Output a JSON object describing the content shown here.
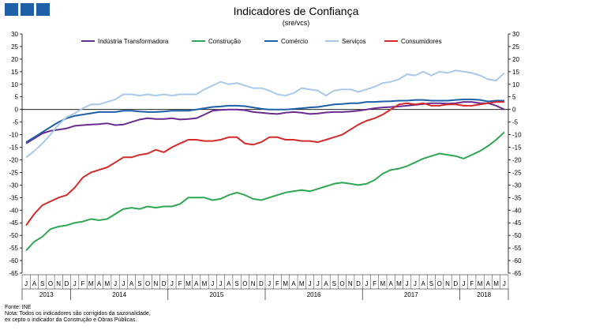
{
  "header": {
    "title": "Indicadores de Confiança",
    "subtitle": "(sre/vcs)"
  },
  "footer": {
    "source": "Fonte: INE",
    "note_line1": "Nota: Todos os indicadores são corrigidos da sazonalidade,",
    "note_line2": "ex cepto o indicador da Construção e Obras Públicas."
  },
  "chart_data": {
    "type": "line",
    "title": "Indicadores de Confiança",
    "subtitle": "(sre/vcs)",
    "xlabel": "",
    "ylabel": "",
    "ylim": [
      -65,
      30
    ],
    "yticks": [
      30,
      25,
      20,
      15,
      10,
      5,
      0,
      -5,
      -10,
      -15,
      -20,
      -25,
      -30,
      -35,
      -40,
      -45,
      -50,
      -55,
      -60,
      -65
    ],
    "grid": false,
    "legend_position": "top",
    "month_labels": [
      "J",
      "A",
      "S",
      "O",
      "N",
      "D",
      "J",
      "F",
      "M",
      "A",
      "M",
      "J",
      "J",
      "A",
      "S",
      "O",
      "N",
      "D",
      "J",
      "F",
      "M",
      "A",
      "M",
      "J",
      "J",
      "A",
      "S",
      "O",
      "N",
      "D",
      "J",
      "F",
      "M",
      "A",
      "M",
      "J",
      "J",
      "A",
      "S",
      "O",
      "N",
      "D",
      "J",
      "F",
      "M",
      "A",
      "M",
      "J",
      "J",
      "A",
      "S",
      "O",
      "N",
      "D",
      "J",
      "F",
      "M",
      "A",
      "M",
      "J"
    ],
    "year_labels": [
      {
        "label": "2013",
        "start": 0,
        "end": 5
      },
      {
        "label": "2014",
        "start": 6,
        "end": 17
      },
      {
        "label": "2015",
        "start": 18,
        "end": 29
      },
      {
        "label": "2016",
        "start": 30,
        "end": 41
      },
      {
        "label": "2017",
        "start": 42,
        "end": 53
      },
      {
        "label": "2018",
        "start": 54,
        "end": 59
      }
    ],
    "series": [
      {
        "name": "Indústria Transformadora",
        "color": "#6b2c8f",
        "values": [
          -13.5,
          -11.5,
          -9.5,
          -8.5,
          -8,
          -7.5,
          -6.5,
          -6.2,
          -6,
          -5.8,
          -5.5,
          -6.2,
          -6,
          -5,
          -4,
          -3.5,
          -3.8,
          -3.8,
          -3.5,
          -4,
          -3.8,
          -3.5,
          -2,
          -0.5,
          -0.2,
          0,
          0,
          -0.3,
          -1,
          -1.3,
          -1.6,
          -1.8,
          -1.3,
          -1,
          -1.3,
          -1.8,
          -1.6,
          -1.2,
          -1,
          -1,
          -0.8,
          -0.5,
          0,
          0.5,
          0.8,
          1,
          1.2,
          1.5,
          1.8,
          2.2,
          2.5,
          2.5,
          2.3,
          2.5,
          3,
          3,
          2.5,
          2.5,
          1.5,
          0
        ]
      },
      {
        "name": "Construção",
        "color": "#2ea652",
        "values": [
          -56,
          -52.5,
          -50.5,
          -47.5,
          -46.5,
          -46,
          -45,
          -44.5,
          -43.5,
          -44,
          -43.5,
          -41.5,
          -39.5,
          -39,
          -39.5,
          -38.5,
          -39,
          -38.5,
          -38.5,
          -37.5,
          -35,
          -35,
          -35,
          -36,
          -35.5,
          -34,
          -33,
          -34,
          -35.5,
          -36,
          -35,
          -34,
          -33,
          -32.5,
          -32,
          -32.5,
          -31.5,
          -30.5,
          -29.5,
          -29,
          -29.5,
          -30,
          -29.5,
          -28,
          -25.5,
          -24,
          -23.5,
          -22.5,
          -21,
          -19.5,
          -18.5,
          -17.5,
          -18,
          -18.5,
          -19.5,
          -18,
          -16.5,
          -14.5,
          -12,
          -9
        ]
      },
      {
        "name": "Comércio",
        "color": "#1f5fa8",
        "values": [
          -13,
          -11,
          -9,
          -7,
          -5,
          -3.5,
          -2.5,
          -2,
          -1.5,
          -1,
          -1,
          -1,
          -0.5,
          -0.5,
          -0.8,
          -1,
          -1,
          -0.8,
          -0.5,
          -0.5,
          -0.5,
          0,
          0.5,
          1,
          1.2,
          1.5,
          1.5,
          1.3,
          0.8,
          0.3,
          0,
          0,
          0,
          0.2,
          0.5,
          0.8,
          1,
          1.5,
          2,
          2.2,
          2.5,
          2.5,
          3,
          3,
          3.2,
          3.3,
          3.5,
          3.5,
          3.8,
          3.8,
          3.5,
          3.5,
          3.5,
          3.8,
          4,
          4,
          3.8,
          3.2,
          3.5,
          3.5
        ]
      },
      {
        "name": "Serviços",
        "color": "#a9c9e8",
        "values": [
          -19,
          -16.5,
          -13.5,
          -10,
          -6,
          -3,
          -1.5,
          0.5,
          2,
          2,
          3,
          4,
          6,
          6,
          5.5,
          6,
          5.5,
          6,
          5.5,
          6,
          6,
          6,
          8,
          9.5,
          11,
          10,
          10.5,
          9.5,
          8.5,
          8.5,
          7.5,
          6,
          5.5,
          6.5,
          8.5,
          8,
          7.5,
          5.5,
          7.5,
          8,
          8,
          7,
          8,
          9,
          10.5,
          11,
          12,
          14,
          13.5,
          15,
          13.5,
          15,
          14.5,
          15.5,
          15,
          14.5,
          13.5,
          12,
          11.5,
          14.5
        ]
      },
      {
        "name": "Consumidores",
        "color": "#d42a2a",
        "values": [
          -46,
          -41.5,
          -38,
          -36.5,
          -35,
          -34,
          -31,
          -27,
          -25,
          -24,
          -23,
          -21,
          -19,
          -19,
          -18,
          -17.5,
          -16,
          -17,
          -15,
          -13.5,
          -12,
          -12,
          -12.5,
          -12.5,
          -12,
          -11,
          -11,
          -13.5,
          -14,
          -13,
          -11,
          -11,
          -12,
          -12,
          -12.5,
          -12.5,
          -13,
          -12,
          -11,
          -10,
          -8,
          -6,
          -4.5,
          -3.5,
          -2,
          0,
          2,
          2.5,
          2,
          2.5,
          1.5,
          1.5,
          2,
          2,
          1.5,
          1.5,
          2,
          2.5,
          3,
          3
        ]
      }
    ]
  }
}
